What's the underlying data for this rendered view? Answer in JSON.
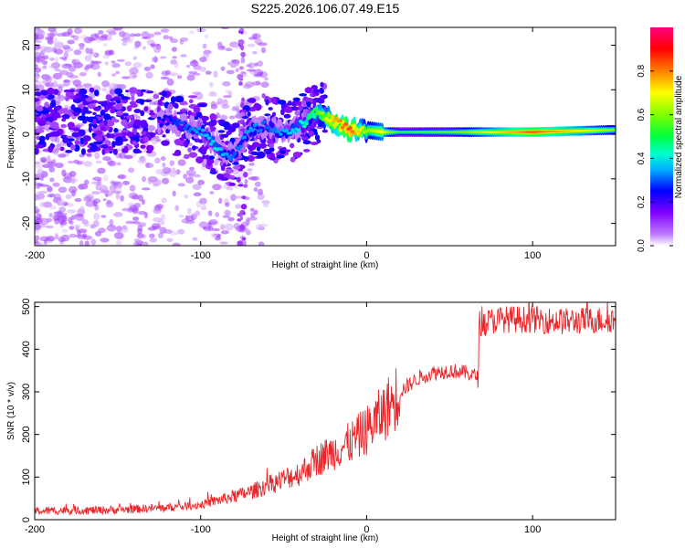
{
  "title": "S225.2026.106.07.49.E15",
  "colors": {
    "frame": "#000000",
    "snr_line": "#e8262a",
    "spectrum_base": "#8a2be2"
  },
  "chart_data": [
    {
      "type": "heatmap",
      "title": "S225.2026.106.07.49.E15",
      "xlabel": "Height of straight line (km)",
      "ylabel": "Frequency (Hz)",
      "xlim": [
        -200,
        150
      ],
      "ylim": [
        -25,
        24
      ],
      "xticks": [
        -200,
        -100,
        0,
        100
      ],
      "xtick_labels": [
        "-200",
        "-100",
        "0",
        "100"
      ],
      "yticks": [
        -20,
        -10,
        0,
        10,
        20
      ],
      "ytick_labels": [
        "-20",
        "-10",
        "0",
        "10",
        "20"
      ],
      "ridge": {
        "description_points_x": [
          -120,
          -100,
          -90,
          -80,
          -70,
          -60,
          -50,
          -40,
          -30,
          -20,
          -10,
          0,
          10,
          20,
          50,
          100,
          150
        ],
        "frequency_hz": [
          3,
          1,
          -3,
          -5,
          1,
          2,
          0,
          2,
          5,
          3,
          1,
          1,
          0.5,
          0.5,
          0.5,
          0.5,
          1
        ],
        "amplitude": [
          0.25,
          0.35,
          0.4,
          0.3,
          0.35,
          0.3,
          0.35,
          0.4,
          0.55,
          0.75,
          0.85,
          0.6,
          0.7,
          0.5,
          0.55,
          0.85,
          0.6
        ]
      },
      "colorbar": {
        "label": "Normalized spectral amplitude",
        "range": [
          0,
          1
        ],
        "ticks": [
          0.0,
          0.2,
          0.4,
          0.6,
          0.8
        ],
        "tick_labels": [
          "0.0",
          "0.2",
          "0.4",
          "0.6",
          "0.8"
        ]
      }
    },
    {
      "type": "line",
      "xlabel": "Height of straight line (km)",
      "ylabel": "SNR (10 * v/v)",
      "xlim": [
        -200,
        150
      ],
      "ylim": [
        0,
        510
      ],
      "xticks": [
        -200,
        -100,
        0,
        100
      ],
      "xtick_labels": [
        "-200",
        "-100",
        "0",
        "100"
      ],
      "yticks": [
        0,
        100,
        200,
        300,
        400,
        500
      ],
      "ytick_labels": [
        "0",
        "100",
        "200",
        "300",
        "400",
        "500"
      ],
      "series": [
        {
          "name": "SNR",
          "x": [
            -200,
            -180,
            -160,
            -140,
            -120,
            -100,
            -90,
            -80,
            -70,
            -60,
            -50,
            -40,
            -30,
            -20,
            -10,
            0,
            10,
            20,
            30,
            40,
            50,
            60,
            67,
            68,
            80,
            100,
            120,
            150
          ],
          "values": [
            20,
            22,
            22,
            25,
            28,
            35,
            45,
            55,
            65,
            80,
            95,
            110,
            140,
            160,
            180,
            210,
            250,
            300,
            330,
            345,
            350,
            345,
            335,
            460,
            470,
            470,
            465,
            470
          ]
        }
      ]
    }
  ]
}
